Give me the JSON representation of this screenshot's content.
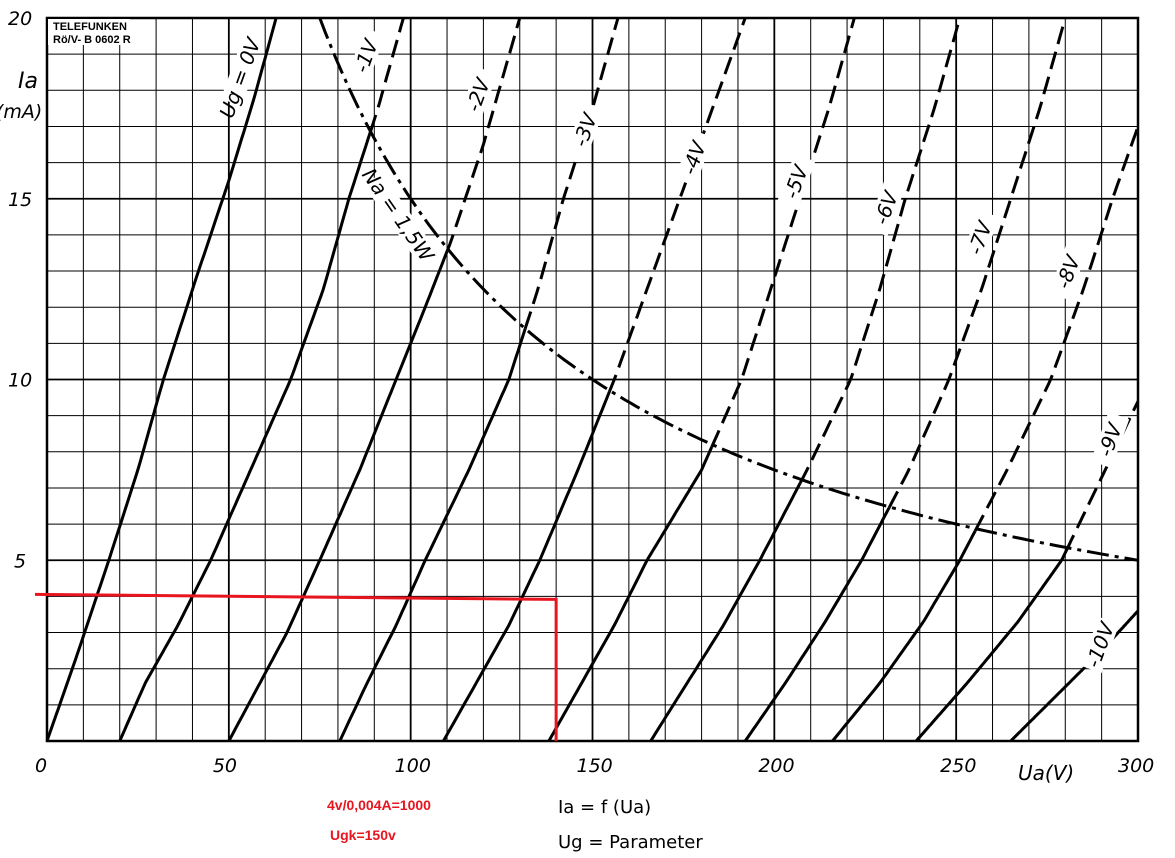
{
  "chart_data": {
    "type": "line",
    "title": "Ia = f (Ua)",
    "subtitle": "Ug = Parameter",
    "brand": "TELEFUNKEN",
    "sheet_id": "Rö/V- B 0602 R",
    "xlabel": "Ua(V)",
    "ylabel": "Ia",
    "ylabel_unit": "(mA)",
    "xlim": [
      0,
      300
    ],
    "ylim": [
      0,
      20
    ],
    "grid": true,
    "x_ticks": [
      "0",
      "50",
      "100",
      "150",
      "200",
      "250",
      "300"
    ],
    "y_ticks": [
      "5",
      "10",
      "15",
      "20"
    ],
    "x_tick_values": [
      0,
      50,
      100,
      150,
      200,
      250,
      300
    ],
    "y_tick_values": [
      5,
      10,
      15,
      20
    ],
    "series": [
      {
        "name": "Ug = 0V",
        "label": "Ug = 0V",
        "points": [
          [
            0,
            0
          ],
          [
            8,
            2.3
          ],
          [
            17,
            5
          ],
          [
            25,
            7.5
          ],
          [
            32,
            10
          ],
          [
            41,
            12.8
          ],
          [
            50,
            15.5
          ],
          [
            57,
            17.8
          ],
          [
            63,
            20
          ]
        ]
      },
      {
        "name": "-1V",
        "label": "-1V",
        "points": [
          [
            20,
            0
          ],
          [
            27,
            1.6
          ],
          [
            36,
            3.2
          ],
          [
            45,
            5
          ],
          [
            56,
            7.5
          ],
          [
            67,
            10
          ],
          [
            76,
            12.5
          ],
          [
            83,
            15
          ],
          [
            91,
            17.5
          ],
          [
            98,
            20
          ]
        ]
      },
      {
        "name": "-2V",
        "label": "-2V",
        "points": [
          [
            50,
            0
          ],
          [
            58,
            1.5
          ],
          [
            66,
            3
          ],
          [
            75,
            5
          ],
          [
            86,
            7.5
          ],
          [
            96,
            10
          ],
          [
            104,
            12
          ],
          [
            111,
            13.8
          ],
          [
            120,
            16.5
          ],
          [
            130,
            20
          ]
        ]
      },
      {
        "name": "-3V",
        "label": "-3V",
        "points": [
          [
            80.5,
            0
          ],
          [
            88,
            1.6
          ],
          [
            96,
            3.2
          ],
          [
            104,
            5
          ],
          [
            116,
            7.5
          ],
          [
            127,
            10
          ],
          [
            135,
            12.5
          ],
          [
            142,
            15
          ],
          [
            150,
            17.5
          ],
          [
            157,
            20
          ]
        ]
      },
      {
        "name": "-4V",
        "label": "-4V",
        "points": [
          [
            109,
            0
          ],
          [
            118,
            1.6
          ],
          [
            127,
            3.2
          ],
          [
            135.5,
            5
          ],
          [
            146,
            7.5
          ],
          [
            156,
            10
          ],
          [
            165,
            12.5
          ],
          [
            174,
            15
          ],
          [
            183,
            17.5
          ],
          [
            192,
            20
          ]
        ]
      },
      {
        "name": "-5V",
        "label": "-5V",
        "points": [
          [
            138,
            0
          ],
          [
            147,
            1.6
          ],
          [
            156,
            3.2
          ],
          [
            165,
            5
          ],
          [
            180,
            7.5
          ],
          [
            191,
            10
          ],
          [
            199,
            12.5
          ],
          [
            207,
            15
          ],
          [
            215,
            17.5
          ],
          [
            222,
            20
          ]
        ]
      },
      {
        "name": "-6V",
        "label": "-6V",
        "points": [
          [
            166,
            0
          ],
          [
            176,
            1.6
          ],
          [
            186,
            3.2
          ],
          [
            196,
            5
          ],
          [
            209,
            7.5
          ],
          [
            221,
            10
          ],
          [
            229,
            12.5
          ],
          [
            236,
            15
          ],
          [
            244,
            17.5
          ],
          [
            251,
            20
          ]
        ]
      },
      {
        "name": "-7V",
        "label": "-7V",
        "points": [
          [
            192,
            0
          ],
          [
            203,
            1.6
          ],
          [
            214,
            3.3
          ],
          [
            224,
            5
          ],
          [
            237,
            7.5
          ],
          [
            248,
            10
          ],
          [
            257,
            12.5
          ],
          [
            265,
            15
          ],
          [
            273,
            17.5
          ],
          [
            280,
            20
          ]
        ]
      },
      {
        "name": "-8V",
        "label": "-8V",
        "points": [
          [
            216,
            0
          ],
          [
            229,
            1.6
          ],
          [
            241,
            3.3
          ],
          [
            251,
            5
          ],
          [
            264,
            7.5
          ],
          [
            276,
            10
          ],
          [
            285,
            12.5
          ],
          [
            293,
            15
          ],
          [
            300,
            17
          ]
        ]
      },
      {
        "name": "-9V",
        "label": "-9V",
        "points": [
          [
            239,
            0
          ],
          [
            253,
            1.6
          ],
          [
            267,
            3.3
          ],
          [
            279,
            5
          ],
          [
            291,
            7.5
          ],
          [
            300,
            9.4
          ]
        ]
      },
      {
        "name": "-10V",
        "label": "-10V",
        "points": [
          [
            265,
            0
          ],
          [
            278,
            1.3
          ],
          [
            290,
            2.5
          ],
          [
            300,
            3.6
          ]
        ]
      }
    ],
    "power_limit": {
      "label": "Na = 1,5W",
      "watts": 1.5,
      "v_range": [
        75,
        300
      ]
    },
    "annotations": {
      "operating_point": {
        "Ua": 140,
        "Ia": 4
      },
      "note_1": "4v/0,004A=1000",
      "note_2": "Ugk=150v",
      "color": "#e8141e"
    }
  }
}
